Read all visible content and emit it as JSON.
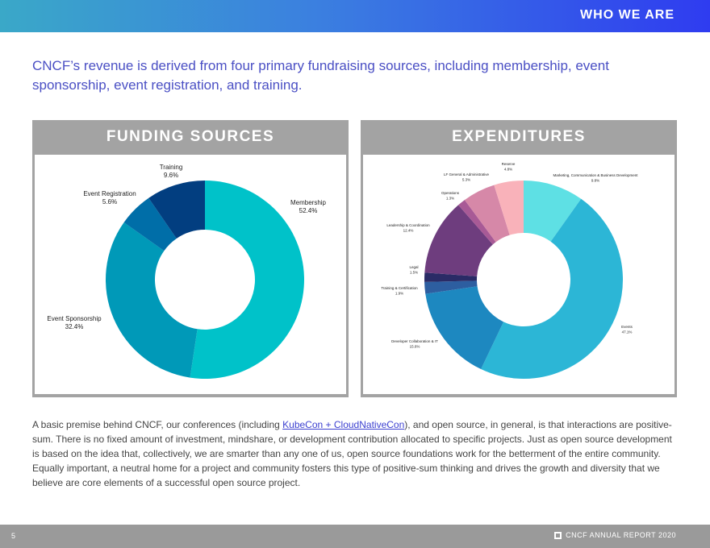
{
  "header": {
    "section_title": "WHO WE ARE"
  },
  "intro": "CNCF’s revenue is derived from four primary fundraising sources, including membership, event sponsorship, event registration, and training.",
  "colors": {
    "banner_start": "#3aa8c8",
    "banner_end": "#2f3cf0",
    "intro_text": "#4a4fc4",
    "panel_grey": "#a3a3a3"
  },
  "chart_data": [
    {
      "type": "pie",
      "title": "FUNDING SOURCES",
      "labels": [
        "Membership",
        "Event Sponsorship",
        "Event Registration",
        "Training"
      ],
      "values": [
        52.4,
        32.4,
        5.6,
        9.6
      ],
      "value_labels": [
        "52.4%",
        "32.4%",
        "5.6%",
        "9.6%"
      ],
      "colors": [
        "#00c2c9",
        "#0099b8",
        "#006ea8",
        "#023e80"
      ]
    },
    {
      "type": "pie",
      "title": "EXPENDITURES",
      "labels": [
        "Marketing, Communication & Business Development",
        "Events",
        "Developer Collaboration & IT",
        "Training & Certification",
        "Legal",
        "Leadership & Coordination",
        "Operations",
        "LF General & Administrative",
        "Reserve"
      ],
      "values": [
        9.8,
        47.1,
        15.6,
        1.9,
        1.5,
        12.4,
        1.3,
        5.3,
        4.8
      ],
      "value_labels": [
        "9.8%",
        "47.1%",
        "15.6%",
        "1.9%",
        "1.5%",
        "12.4%",
        "1.3%",
        "5.3%",
        "4.8%"
      ],
      "colors": [
        "#5ee0e4",
        "#2cb6d6",
        "#1d88c0",
        "#2d5ea0",
        "#2a2b66",
        "#6e3d7e",
        "#a85a96",
        "#d688a8",
        "#f9b2ba"
      ]
    }
  ],
  "body": {
    "before_link": "A basic premise behind CNCF, our conferences (including ",
    "link": "KubeCon + CloudNativeCon",
    "after_link": "), and open source, in general, is that interactions are positive-sum. There is no fixed amount of investment, mindshare, or development contribution allocated to specific projects. Just as open source development is based on the idea that, collectively, we are smarter than any one of us, open source foundations work for the betterment of the entire community. Equally important, a neutral home for a project and community fosters this type of positive-sum thinking and drives the growth and diversity that we believe are core elements of a successful open source project."
  },
  "footer": {
    "page_number": "5",
    "report_label": "CNCF ANNUAL REPORT 2020"
  }
}
